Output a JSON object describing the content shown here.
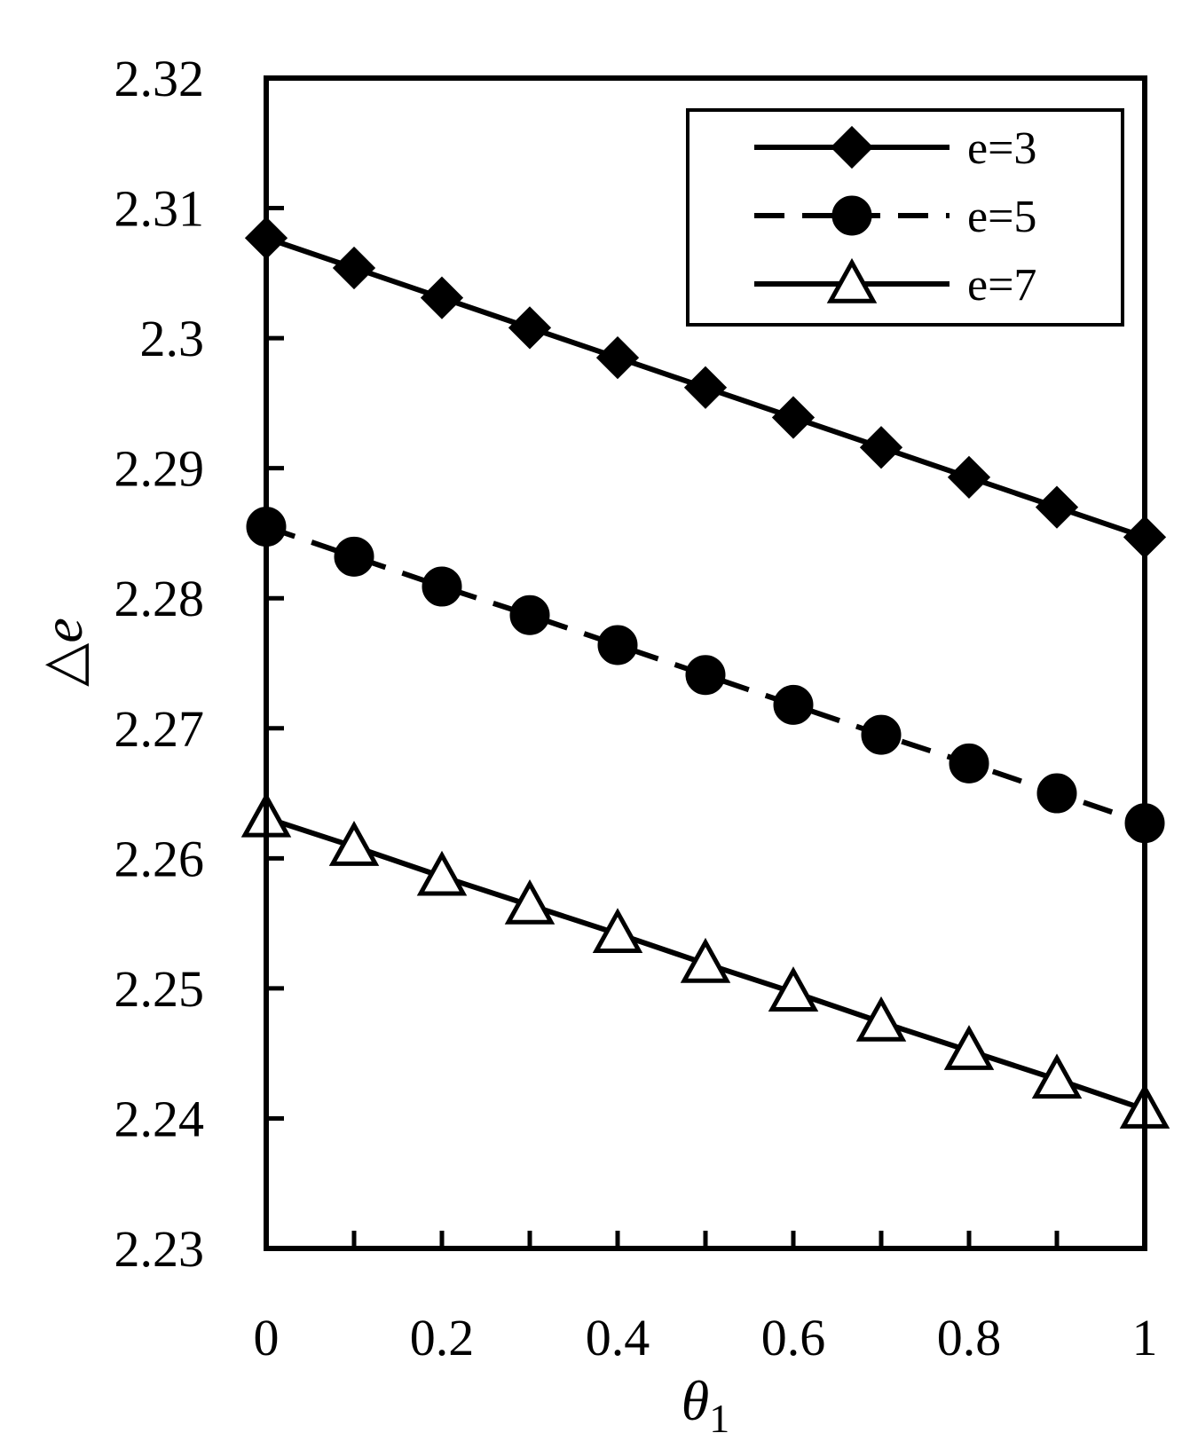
{
  "chart_data": {
    "type": "line",
    "title": "",
    "xlabel": "θ",
    "xlabel_subscript": "1",
    "ylabel": "△e",
    "xlim": [
      0,
      1
    ],
    "ylim": [
      2.23,
      2.32
    ],
    "x_ticks": [
      0,
      0.1,
      0.2,
      0.3,
      0.4,
      0.5,
      0.6,
      0.7,
      0.8,
      0.9,
      1
    ],
    "x_tick_labels": [
      "0",
      "",
      "0.2",
      "",
      "0.4",
      "",
      "0.6",
      "",
      "0.8",
      "",
      "1"
    ],
    "y_ticks": [
      2.23,
      2.24,
      2.25,
      2.26,
      2.27,
      2.28,
      2.29,
      2.3,
      2.31,
      2.32
    ],
    "y_tick_labels": [
      "2.23",
      "2.24",
      "2.25",
      "2.26",
      "2.27",
      "2.28",
      "2.29",
      "2.3",
      "2.31",
      "2.32"
    ],
    "grid": false,
    "legend_position": "top-right",
    "x": [
      0,
      0.1,
      0.2,
      0.3,
      0.4,
      0.5,
      0.6,
      0.7,
      0.8,
      0.9,
      1
    ],
    "series": [
      {
        "name": "e=3",
        "marker": "diamond",
        "line_style": "solid",
        "marker_fill": "#000000",
        "values": [
          2.3077,
          2.3054,
          2.3031,
          2.3008,
          2.2985,
          2.2962,
          2.2939,
          2.2916,
          2.2893,
          2.287,
          2.2847
        ]
      },
      {
        "name": "e=5",
        "marker": "circle",
        "line_style": "dashed",
        "marker_fill": "#000000",
        "values": [
          2.2855,
          2.2832,
          2.2809,
          2.2787,
          2.2764,
          2.2741,
          2.2718,
          2.2695,
          2.2673,
          2.265,
          2.2627
        ]
      },
      {
        "name": "e=7",
        "marker": "triangle",
        "line_style": "solid",
        "marker_fill": "#ffffff",
        "values": [
          2.2631,
          2.2609,
          2.2586,
          2.2564,
          2.2542,
          2.2519,
          2.2497,
          2.2474,
          2.2452,
          2.243,
          2.2407
        ]
      }
    ]
  }
}
